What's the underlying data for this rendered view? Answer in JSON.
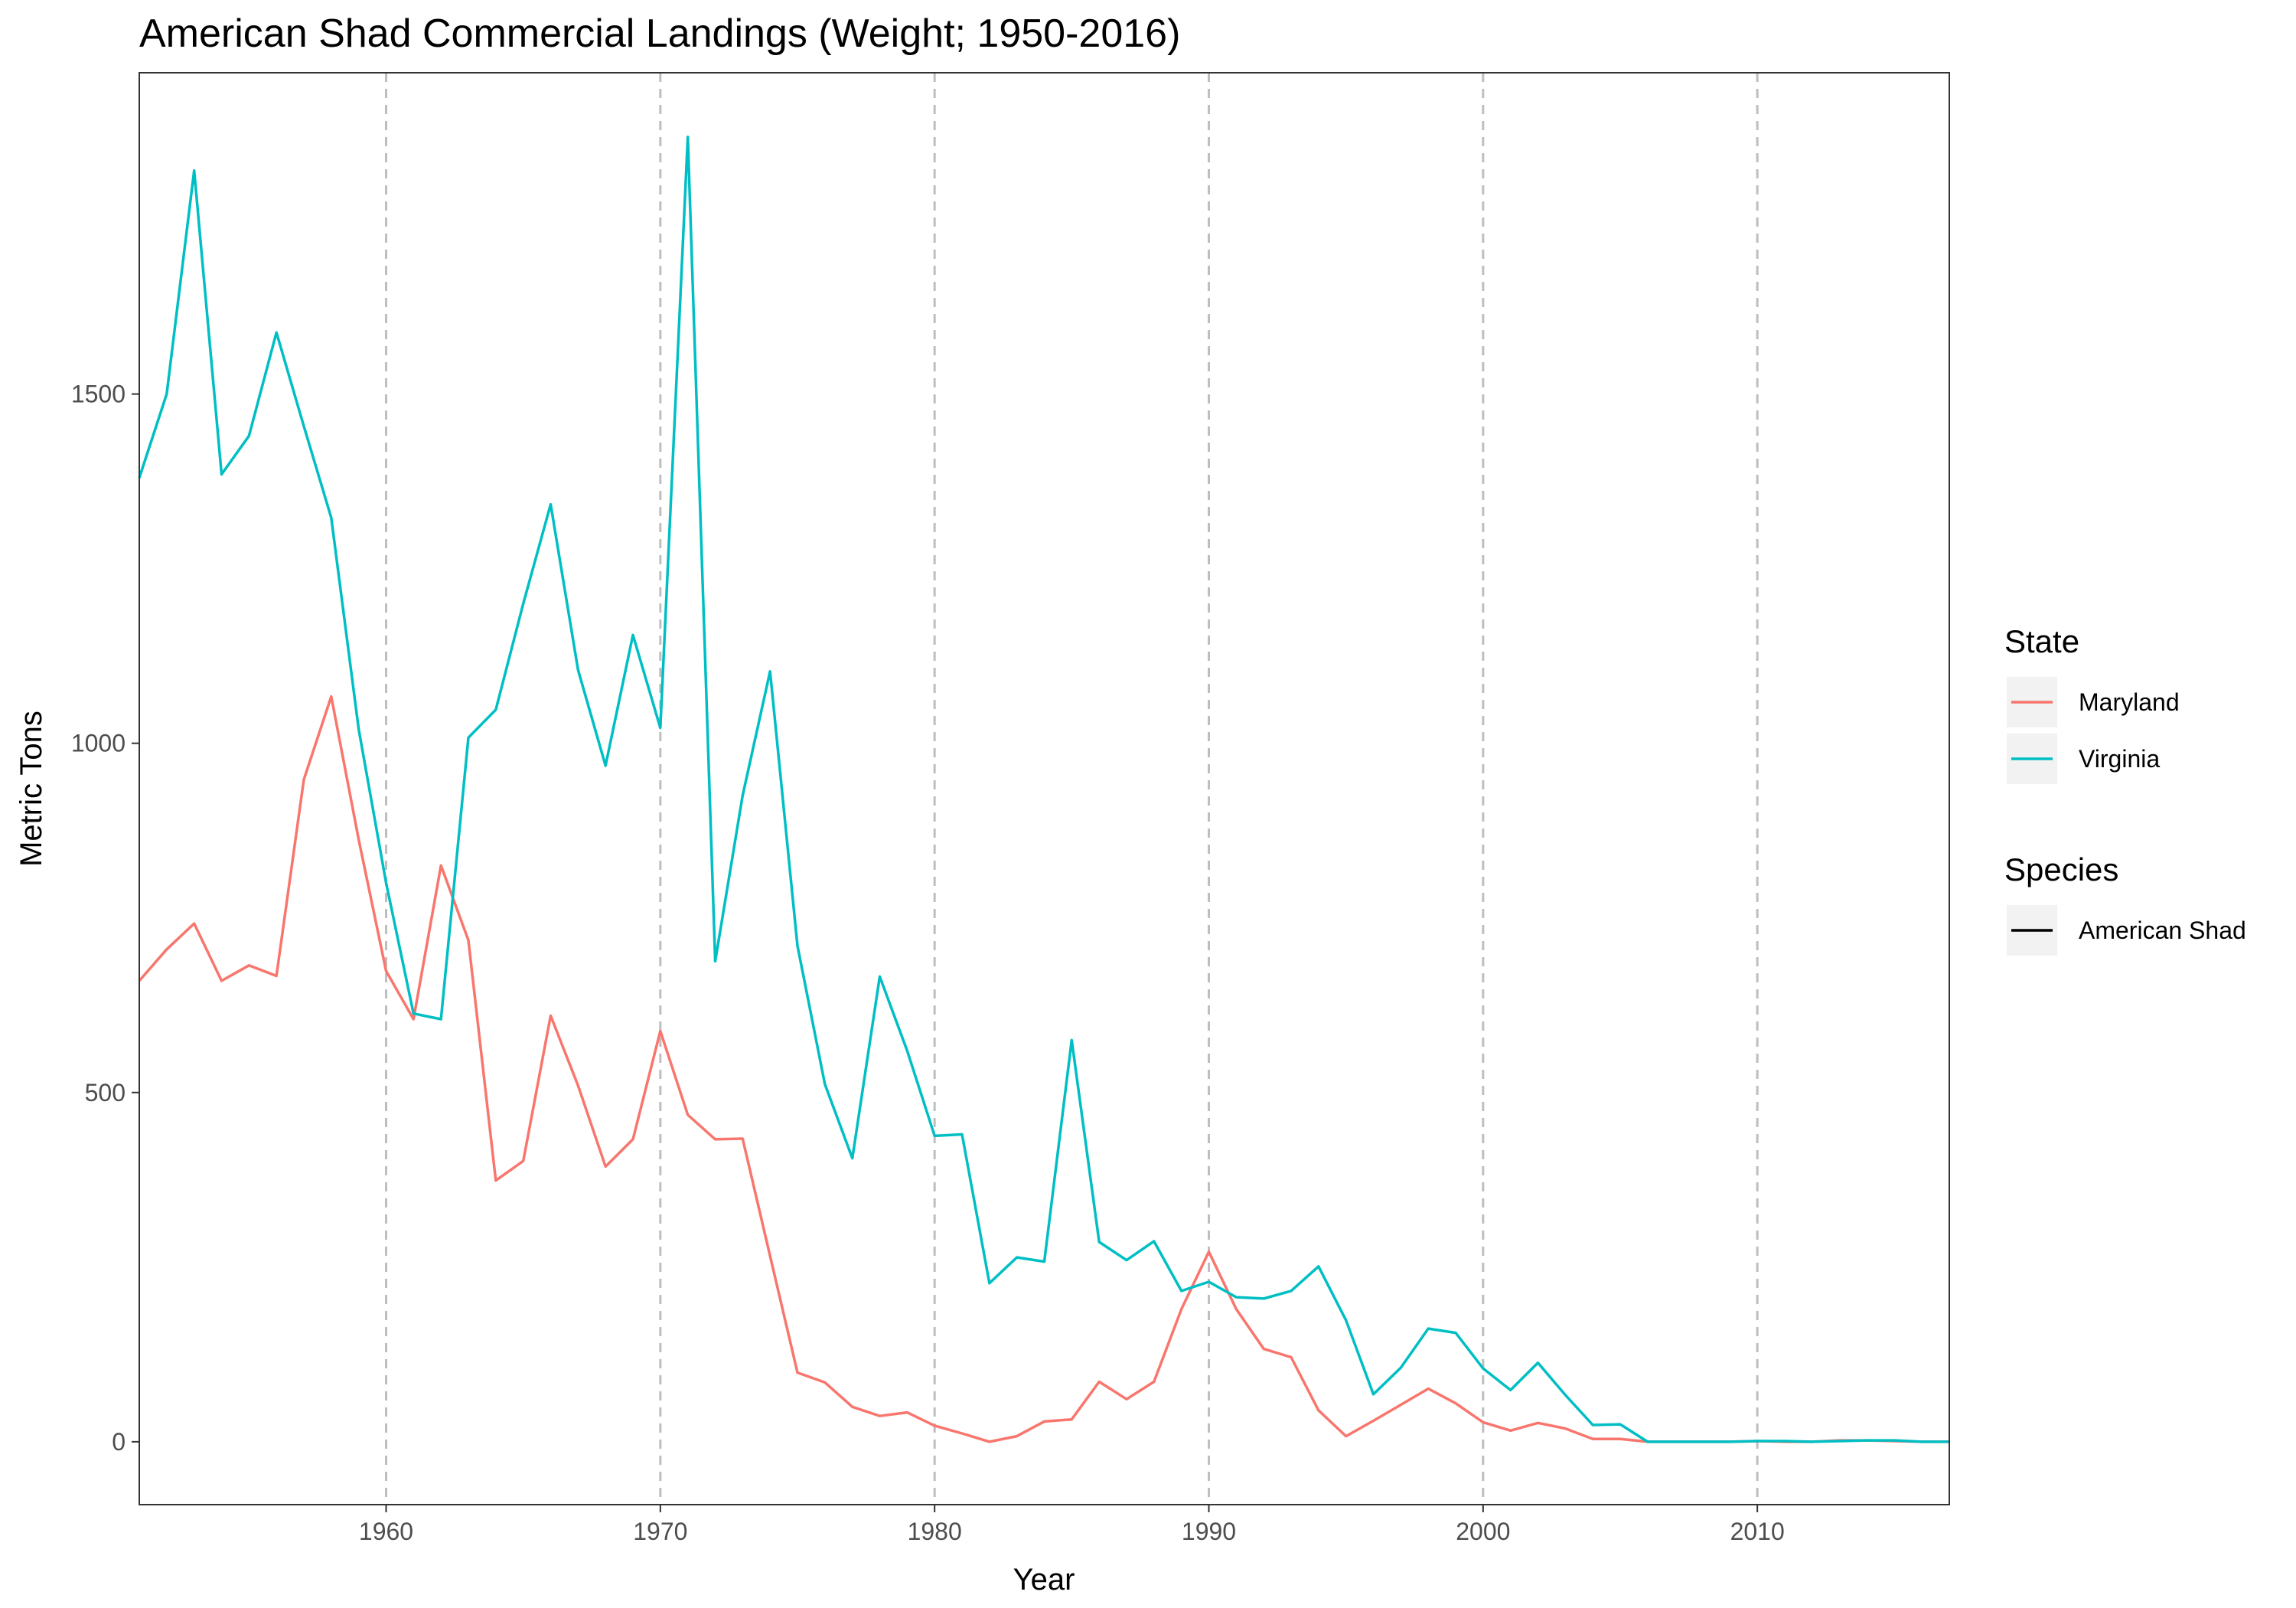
{
  "chart_data": {
    "type": "line",
    "title": "American Shad Commercial Landings (Weight; 1950-2016)",
    "xlabel": "Year",
    "ylabel": "Metric Tons",
    "xlim": [
      1951,
      2017
    ],
    "ylim": [
      -90,
      1960
    ],
    "x_ticks": [
      1960,
      1970,
      1980,
      1990,
      2000,
      2010
    ],
    "y_ticks": [
      0,
      500,
      1000,
      1500
    ],
    "vertical_reference_lines": [
      1960,
      1970,
      1980,
      1990,
      2000,
      2010
    ],
    "grid": false,
    "legend_position": "right",
    "legends": [
      {
        "title": "State",
        "entries": [
          {
            "label": "Maryland",
            "color": "#F8766D"
          },
          {
            "label": "Virginia",
            "color": "#00BFC4"
          }
        ]
      },
      {
        "title": "Species",
        "entries": [
          {
            "label": "American Shad",
            "color": "#000000"
          }
        ]
      }
    ],
    "x": [
      1951,
      1952,
      1953,
      1954,
      1955,
      1956,
      1957,
      1958,
      1959,
      1960,
      1961,
      1962,
      1963,
      1964,
      1965,
      1966,
      1967,
      1968,
      1969,
      1970,
      1971,
      1972,
      1973,
      1974,
      1975,
      1976,
      1977,
      1978,
      1979,
      1980,
      1981,
      1982,
      1983,
      1984,
      1985,
      1986,
      1987,
      1988,
      1989,
      1990,
      1991,
      1992,
      1993,
      1994,
      1995,
      1996,
      1997,
      1998,
      1999,
      2000,
      2001,
      2002,
      2003,
      2004,
      2005,
      2006,
      2007,
      2008,
      2009,
      2010,
      2011,
      2012,
      2013,
      2014,
      2015,
      2016,
      2017
    ],
    "series": [
      {
        "name": "Maryland",
        "color": "#F8766D",
        "values": [
          660,
          705,
          742,
          660,
          682,
          667,
          948,
          1067,
          862,
          674,
          605,
          825,
          718,
          374,
          402,
          610,
          510,
          394,
          433,
          588,
          468,
          433,
          434,
          266,
          99,
          85,
          50,
          37,
          42,
          23,
          12,
          0,
          8,
          29,
          32,
          86,
          61,
          86,
          190,
          272,
          190,
          133,
          121,
          45,
          8,
          30,
          53,
          76,
          55,
          28,
          16,
          27,
          19,
          4,
          4,
          0,
          0,
          0,
          0,
          1,
          0,
          0,
          2,
          2,
          1,
          0,
          0
        ]
      },
      {
        "name": "Virginia",
        "color": "#00BFC4",
        "values": [
          1380,
          1500,
          1820,
          1385,
          1440,
          1588,
          1454,
          1323,
          1020,
          800,
          613,
          605,
          1008,
          1048,
          1200,
          1342,
          1105,
          968,
          1155,
          1022,
          1868,
          688,
          925,
          1103,
          710,
          512,
          406,
          666,
          560,
          438,
          440,
          227,
          264,
          258,
          575,
          286,
          260,
          287,
          216,
          229,
          207,
          205,
          216,
          251,
          174,
          68,
          106,
          162,
          156,
          105,
          74,
          113,
          67,
          24,
          25,
          0,
          0,
          0,
          0,
          1,
          1,
          0,
          1,
          2,
          2,
          0,
          0
        ]
      }
    ]
  }
}
